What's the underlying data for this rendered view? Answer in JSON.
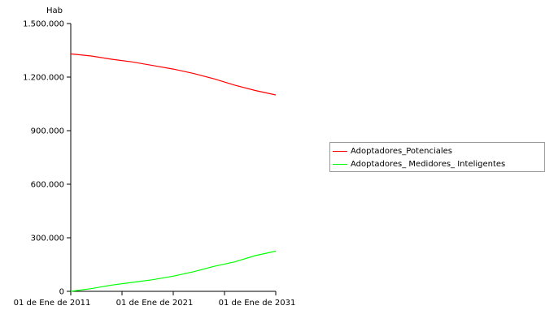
{
  "chart_data": {
    "type": "line",
    "ylabel": "Hab",
    "xlabel": "",
    "x_ticks": [
      {
        "year": 2011,
        "label": "01 de Ene de 2011"
      },
      {
        "year": 2021,
        "label": "01 de Ene de 2021"
      },
      {
        "year": 2031,
        "label": "01 de Ene de 2031"
      }
    ],
    "x_minor_ticks": [
      2016,
      2026
    ],
    "xlim": [
      2011,
      2031
    ],
    "ylim": [
      0,
      1500000
    ],
    "y_ticks": [
      {
        "value": 0,
        "label": "0"
      },
      {
        "value": 300000,
        "label": "300.000"
      },
      {
        "value": 600000,
        "label": "600.000"
      },
      {
        "value": 900000,
        "label": "900.000"
      },
      {
        "value": 1200000,
        "label": "1.200.000"
      },
      {
        "value": 1500000,
        "label": "1.500.000"
      }
    ],
    "grid": false,
    "legend_position": "right",
    "series": [
      {
        "name": "Adoptadores_Potenciales",
        "color": "#ff0000",
        "x": [
          2011,
          2013,
          2015,
          2017,
          2019,
          2021,
          2023,
          2025,
          2027,
          2029,
          2031
        ],
        "y": [
          1330000,
          1318000,
          1300000,
          1285000,
          1265000,
          1245000,
          1220000,
          1190000,
          1155000,
          1125000,
          1100000
        ]
      },
      {
        "name": "Adoptadores_ Medidores_ Inteligentes",
        "color": "#00ff00",
        "x": [
          2011,
          2013,
          2015,
          2017,
          2019,
          2021,
          2023,
          2025,
          2027,
          2029,
          2031
        ],
        "y": [
          0,
          15000,
          35000,
          50000,
          65000,
          85000,
          110000,
          140000,
          165000,
          200000,
          225000
        ]
      }
    ]
  }
}
